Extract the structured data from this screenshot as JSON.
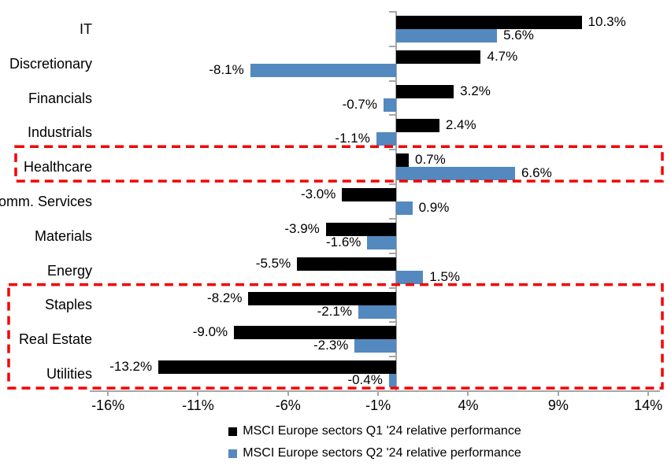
{
  "chart_data": {
    "type": "bar",
    "orientation": "horizontal",
    "title": "",
    "categories": [
      "IT",
      "Discretionary",
      "Financials",
      "Industrials",
      "Healthcare",
      "Comm. Services",
      "Materials",
      "Energy",
      "Staples",
      "Real Estate",
      "Utilities"
    ],
    "series": [
      {
        "name": "MSCI Europe sectors Q1 '24 relative performance",
        "color": "#000000",
        "values": [
          10.3,
          4.7,
          3.2,
          2.4,
          0.7,
          -3.0,
          -3.9,
          -5.5,
          -8.2,
          -9.0,
          -13.2
        ],
        "labels": [
          "10.3%",
          "4.7%",
          "3.2%",
          "2.4%",
          "0.7%",
          "-3.0%",
          "-3.9%",
          "-5.5%",
          "-8.2%",
          "-9.0%",
          "-13.2%"
        ]
      },
      {
        "name": "MSCI Europe sectors Q2 '24 relative performance",
        "color": "#5389be",
        "values": [
          5.6,
          -8.1,
          -0.7,
          -1.1,
          6.6,
          0.9,
          -1.6,
          1.5,
          -2.1,
          -2.3,
          -0.4
        ],
        "labels": [
          "5.6%",
          "-8.1%",
          "-0.7%",
          "-1.1%",
          "6.6%",
          "0.9%",
          "-1.6%",
          "1.5%",
          "-2.1%",
          "-2.3%",
          "-0.4%"
        ]
      }
    ],
    "x_ticks": [
      -16,
      -11,
      -6,
      -1,
      4,
      9,
      14
    ],
    "x_tick_labels": [
      "-16%",
      "-11%",
      "-6%",
      "-1%",
      "4%",
      "9%",
      "14%"
    ],
    "xlim": [
      -17,
      14.8
    ],
    "grid": false,
    "legend_position": "bottom",
    "axis_color": "#a6a6a6",
    "highlight_color": "#f40000",
    "highlight_boxes": [
      {
        "sectors": [
          "Healthcare"
        ]
      },
      {
        "sectors": [
          "Staples",
          "Real Estate",
          "Utilities"
        ]
      }
    ]
  }
}
